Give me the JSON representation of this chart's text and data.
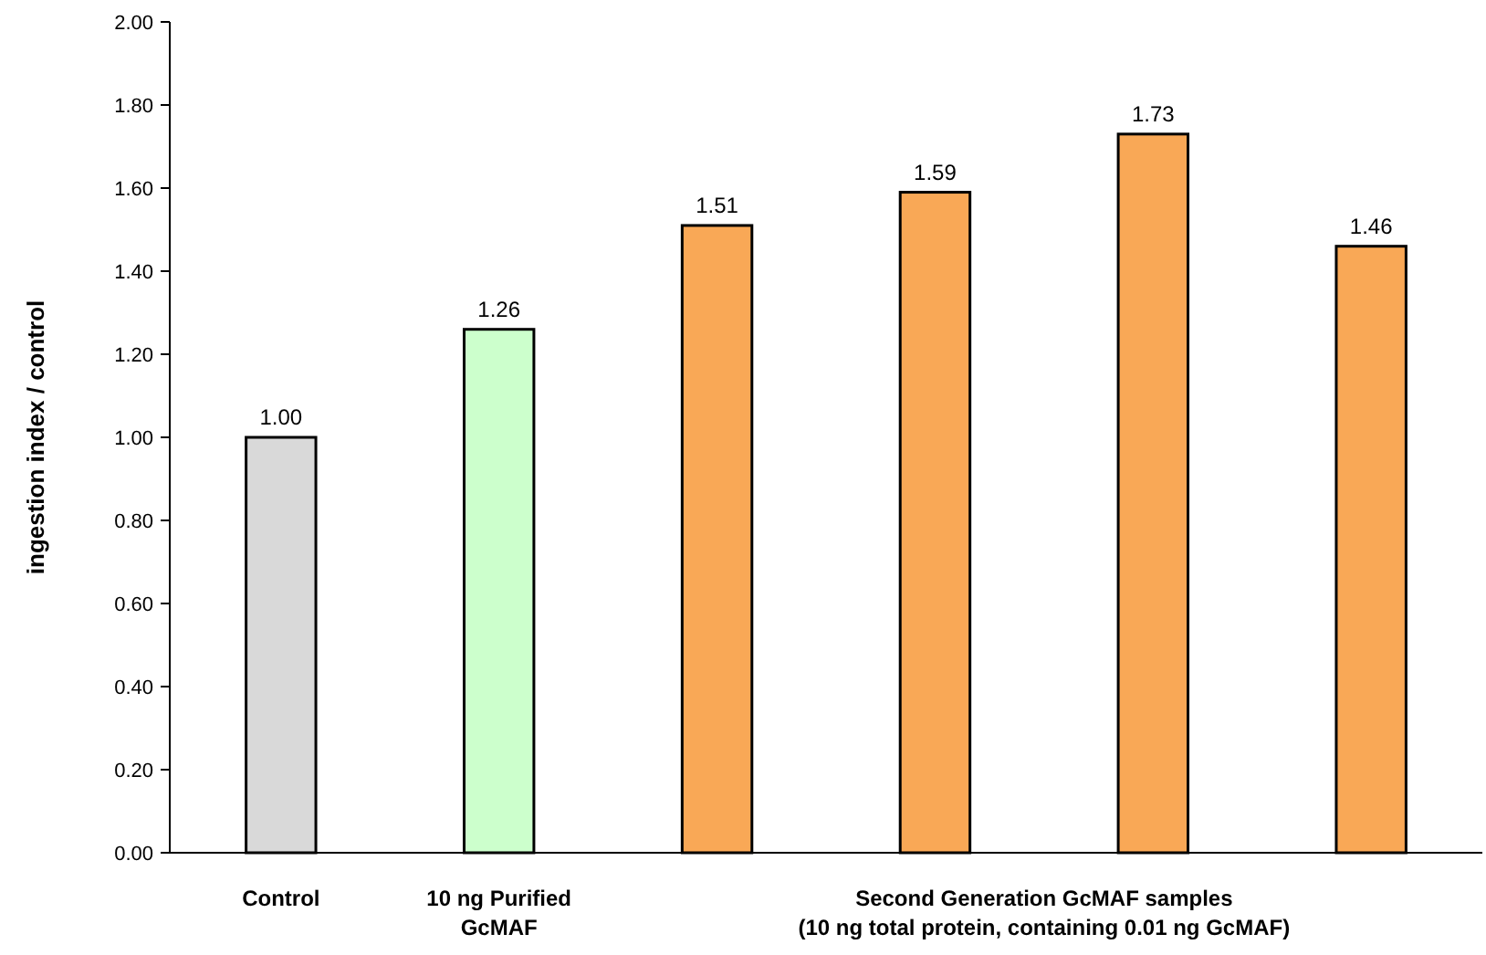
{
  "chart_data": {
    "type": "bar",
    "ylabel": "ingestion index / control",
    "categories": [
      "Control",
      "10 ng Purified\nGcMAF",
      null,
      null,
      null,
      null
    ],
    "values": [
      1.0,
      1.26,
      1.51,
      1.59,
      1.73,
      1.46
    ],
    "colors": [
      "#d9d9d9",
      "#ccffcc",
      "#f9a856",
      "#f9a856",
      "#f9a856",
      "#f9a856"
    ],
    "ylim": [
      0,
      2
    ],
    "yticks": [
      {
        "value": 0,
        "label": "0.00"
      },
      {
        "value": 0.2,
        "label": "0.20"
      },
      {
        "value": 0.4,
        "label": "0.40"
      },
      {
        "value": 0.6,
        "label": "0.60"
      },
      {
        "value": 0.8,
        "label": "0.80"
      },
      {
        "value": 1,
        "label": "1.00"
      },
      {
        "value": 1.2,
        "label": "1.20"
      },
      {
        "value": 1.4,
        "label": "1.40"
      },
      {
        "value": 1.6,
        "label": "1.60"
      },
      {
        "value": 1.8,
        "label": "1.80"
      },
      {
        "value": 2,
        "label": "2.00"
      }
    ],
    "value_labels": [
      "1.00",
      "1.26",
      "1.51",
      "1.59",
      "1.73",
      "1.46"
    ],
    "annotations": [
      "Second Generation GcMAF samples\n(10 ng total protein, containing 0.01 ng GcMAF)"
    ],
    "grid": false
  }
}
